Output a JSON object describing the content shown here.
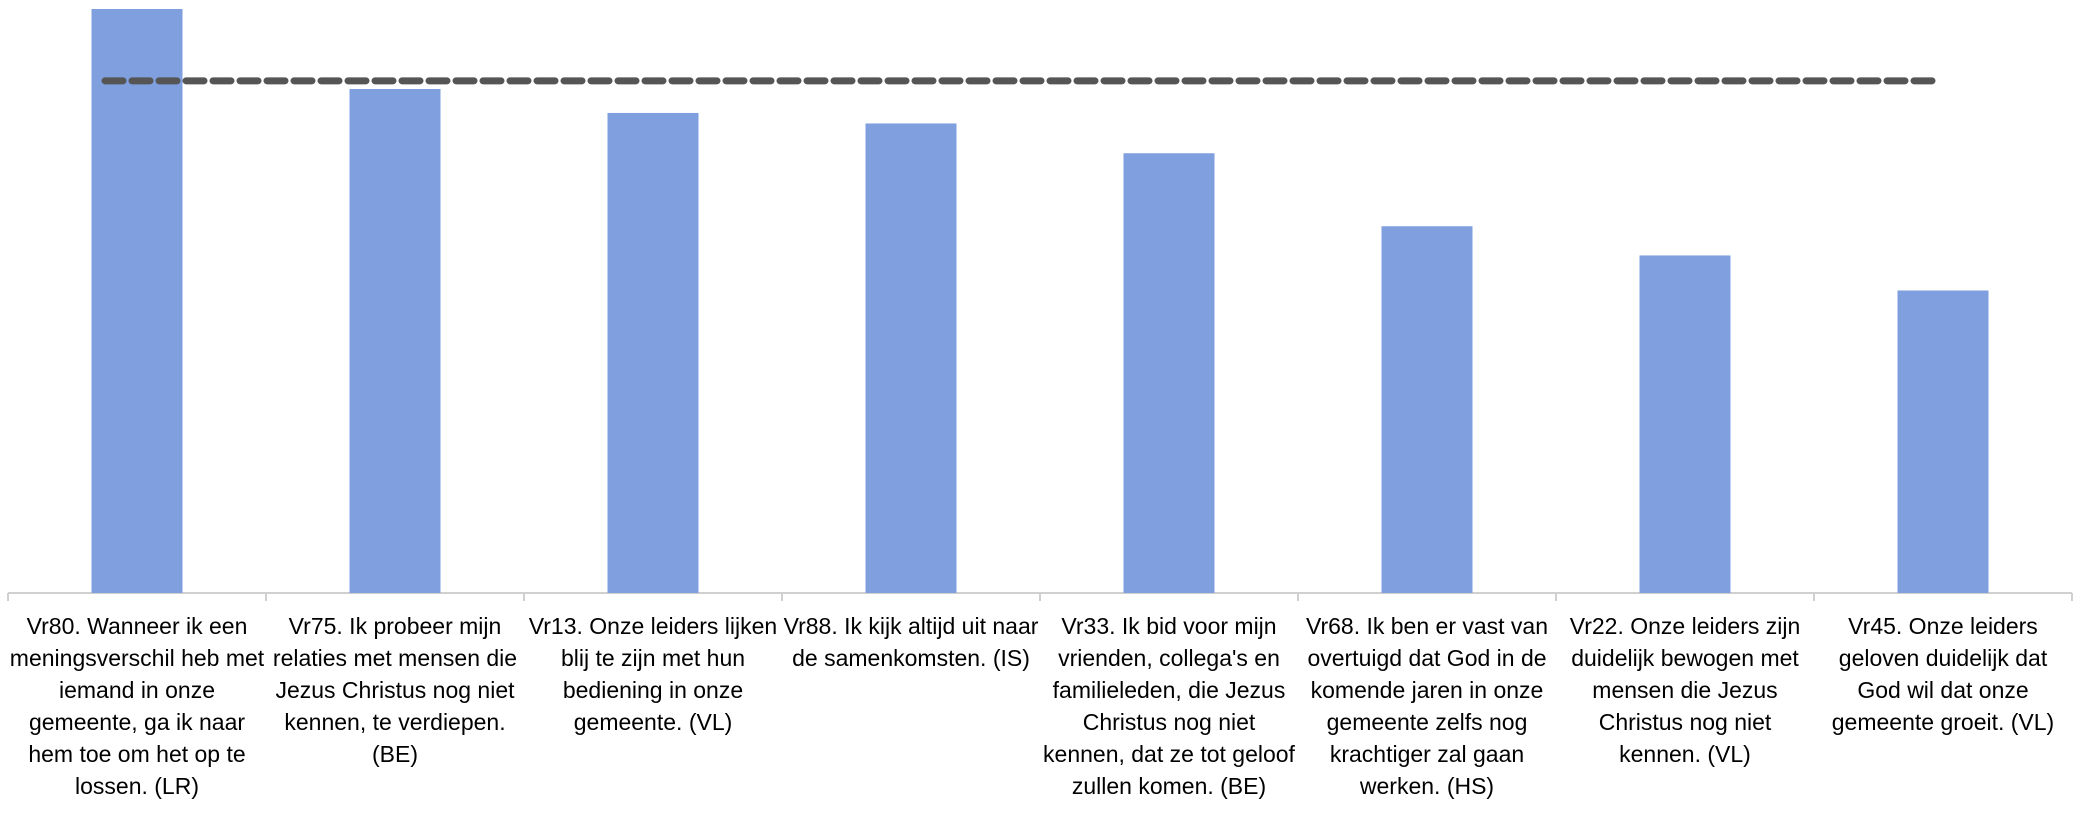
{
  "chart_data": {
    "type": "bar",
    "categories": [
      "Vr80. Wanneer ik een meningsverschil heb met iemand in onze gemeente, ga ik naar hem toe om het op te lossen. (LR)",
      "Vr75. Ik probeer mijn relaties met mensen die Jezus Christus nog niet kennen, te verdiepen. (BE)",
      "Vr13. Onze leiders lijken blij te zijn met hun bediening in onze gemeente. (VL)",
      "Vr88. Ik kijk altijd uit naar de samenkomsten. (IS)",
      "Vr33. Ik bid voor mijn vrienden, collega's en familieleden, die Jezus Christus nog niet kennen, dat ze tot geloof zullen komen. (BE)",
      "Vr68. Ik ben er vast van overtuigd dat God in de komende jaren in onze gemeente zelfs nog krachtiger zal gaan werken. (HS)",
      "Vr22. Onze leiders zijn duidelijk bewogen met mensen die Jezus Christus nog niet kennen. (VL)",
      "Vr45. Onze leiders geloven duidelijk dat God wil dat onze gemeente groeit. (VL)"
    ],
    "values": [
      100,
      86.3,
      82.2,
      80.4,
      75.3,
      62.8,
      57.8,
      51.8
    ],
    "reference_line": 87.7,
    "color": "#7f9fdf",
    "reference_color": "#555555",
    "ylim": [
      0,
      100
    ]
  }
}
